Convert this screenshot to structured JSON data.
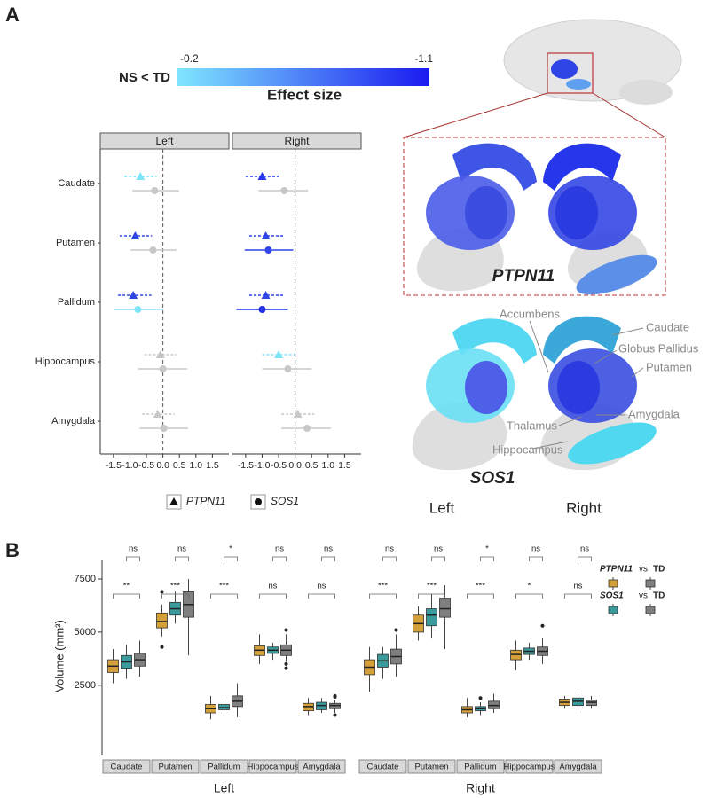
{
  "panel_labels": [
    "A",
    "B"
  ],
  "illustration": {
    "genes": [
      "PTPN11",
      "SOS1"
    ],
    "sides": [
      "Left",
      "Right"
    ],
    "structures": [
      "Accumbens",
      "Caudate",
      "Globus Pallidus",
      "Putamen",
      "Amygdala",
      "Thalamus",
      "Hippocampus"
    ]
  },
  "chart_data": [
    {
      "type": "forest",
      "facets": [
        "Left",
        "Right"
      ],
      "categories": [
        "Caudate",
        "Putamen",
        "Pallidum",
        "Hippocampus",
        "Amygdala"
      ],
      "xlim": [
        -1.9,
        2.0
      ],
      "xticks": [
        -1.5,
        {
          "value": -1,
          "label": "-1.0"
        },
        -0.5,
        {
          "value": 0,
          "label": "0.0"
        },
        0.5,
        {
          "value": 1,
          "label": "1.0"
        },
        1.5
      ],
      "colorbar": {
        "side_label": "NS < TD",
        "label": "Effect size",
        "lim": [
          -0.2,
          -1.1
        ],
        "colors": [
          "#7fe6ff",
          "#1a1aef"
        ]
      },
      "series": [
        {
          "name": "PTPN11",
          "marker": "triangle",
          "line_style": "dashed",
          "facets": [
            {
              "values": [
                -0.68,
                -0.84,
                -0.9,
                -0.08,
                -0.16
              ],
              "lower": [
                -1.17,
                -1.31,
                -1.36,
                -0.57,
                -0.63
              ],
              "upper": [
                -0.19,
                -0.33,
                -0.35,
                0.41,
                0.35
              ],
              "colors": [
                "#7fe3fa",
                "#2f45e6",
                "#2f45e6",
                "#c8c8c8",
                "#c8c8c8"
              ]
            },
            {
              "values": [
                -1.0,
                -0.89,
                -0.89,
                -0.5,
                0.08
              ],
              "lower": [
                -1.5,
                -1.39,
                -1.39,
                -1.0,
                -0.42
              ],
              "upper": [
                -0.5,
                -0.36,
                -0.36,
                0.0,
                0.58
              ],
              "colors": [
                "#2636ea",
                "#2f45e6",
                "#2f45e6",
                "#7fe3fa",
                "#c8c8c8"
              ]
            }
          ]
        },
        {
          "name": "SOS1",
          "marker": "circle",
          "line_style": "solid",
          "facets": [
            {
              "values": [
                -0.25,
                -0.3,
                -0.76,
                0.0,
                0.03
              ],
              "lower": [
                -0.93,
                -0.98,
                -1.5,
                -0.76,
                -0.71
              ],
              "upper": [
                0.49,
                0.41,
                0.0,
                0.74,
                0.76
              ],
              "colors": [
                "#c8c8c8",
                "#c8c8c8",
                "#7fe3fa",
                "#c8c8c8",
                "#c8c8c8"
              ]
            },
            {
              "values": [
                -0.33,
                -0.81,
                -1.0,
                -0.22,
                0.36
              ],
              "lower": [
                -1.11,
                -1.53,
                -1.78,
                -1.0,
                -0.42
              ],
              "upper": [
                0.39,
                -0.06,
                -0.22,
                0.5,
                1.08
              ],
              "colors": [
                "#c8c8c8",
                "#2f45e6",
                "#2230e8",
                "#c8c8c8",
                "#c8c8c8"
              ]
            }
          ]
        }
      ]
    },
    {
      "type": "boxplot",
      "ylabel": "Volume (mm³)",
      "ylim": [
        -800,
        9000
      ],
      "yticks": [
        2500,
        5000,
        7500
      ],
      "groups": [
        "Left",
        "Right"
      ],
      "categories": [
        "Caudate",
        "Putamen",
        "Pallidum",
        "Hippocampus",
        "Amygdala"
      ],
      "legend_connector": "vs",
      "series": [
        {
          "name": "PTPN11",
          "color": "#d4a03a",
          "groups": [
            [
              {
                "min": 2600,
                "q1": 3100,
                "median": 3400,
                "q3": 3700,
                "max": 4200,
                "outliers": []
              },
              {
                "min": 4800,
                "q1": 5200,
                "median": 5500,
                "q3": 5900,
                "max": 6300,
                "outliers": [
                  4300,
                  6900
                ]
              },
              {
                "min": 900,
                "q1": 1200,
                "median": 1400,
                "q3": 1600,
                "max": 2000,
                "outliers": []
              },
              {
                "min": 3500,
                "q1": 3900,
                "median": 4150,
                "q3": 4350,
                "max": 4900,
                "outliers": []
              },
              {
                "min": 1100,
                "q1": 1300,
                "median": 1500,
                "q3": 1650,
                "max": 1900,
                "outliers": []
              }
            ],
            [
              {
                "min": 2200,
                "q1": 3000,
                "median": 3350,
                "q3": 3700,
                "max": 4300,
                "outliers": []
              },
              {
                "min": 4600,
                "q1": 5000,
                "median": 5400,
                "q3": 5800,
                "max": 6200,
                "outliers": []
              },
              {
                "min": 1000,
                "q1": 1200,
                "median": 1350,
                "q3": 1500,
                "max": 1900,
                "outliers": []
              },
              {
                "min": 3200,
                "q1": 3700,
                "median": 3950,
                "q3": 4150,
                "max": 4600,
                "outliers": []
              },
              {
                "min": 1400,
                "q1": 1550,
                "median": 1700,
                "q3": 1850,
                "max": 2000,
                "outliers": []
              }
            ]
          ]
        },
        {
          "name": "SOS1",
          "color": "#3a9a9c",
          "groups": [
            [
              {
                "min": 2800,
                "q1": 3300,
                "median": 3600,
                "q3": 3900,
                "max": 4400,
                "outliers": []
              },
              {
                "min": 5400,
                "q1": 5800,
                "median": 6100,
                "q3": 6400,
                "max": 6900,
                "outliers": []
              },
              {
                "min": 1100,
                "q1": 1350,
                "median": 1450,
                "q3": 1600,
                "max": 1900,
                "outliers": []
              },
              {
                "min": 3700,
                "q1": 4000,
                "median": 4150,
                "q3": 4300,
                "max": 4500,
                "outliers": []
              },
              {
                "min": 1200,
                "q1": 1350,
                "median": 1550,
                "q3": 1700,
                "max": 1900,
                "outliers": []
              }
            ],
            [
              {
                "min": 2800,
                "q1": 3350,
                "median": 3650,
                "q3": 3950,
                "max": 4300,
                "outliers": []
              },
              {
                "min": 4700,
                "q1": 5300,
                "median": 5800,
                "q3": 6100,
                "max": 6800,
                "outliers": []
              },
              {
                "min": 1100,
                "q1": 1300,
                "median": 1400,
                "q3": 1500,
                "max": 1700,
                "outliers": [
                  1900
                ]
              },
              {
                "min": 3700,
                "q1": 3950,
                "median": 4100,
                "q3": 4250,
                "max": 4500,
                "outliers": []
              },
              {
                "min": 1300,
                "q1": 1550,
                "median": 1750,
                "q3": 1900,
                "max": 2200,
                "outliers": []
              }
            ]
          ]
        },
        {
          "name": "TD",
          "color": "#7f7f7f",
          "groups": [
            [
              {
                "min": 2900,
                "q1": 3400,
                "median": 3700,
                "q3": 4000,
                "max": 4600,
                "outliers": []
              },
              {
                "min": 3900,
                "q1": 5700,
                "median": 6300,
                "q3": 6900,
                "max": 7500,
                "outliers": []
              },
              {
                "min": 1000,
                "q1": 1500,
                "median": 1750,
                "q3": 2000,
                "max": 2600,
                "outliers": []
              },
              {
                "min": 3600,
                "q1": 3900,
                "median": 4150,
                "q3": 4400,
                "max": 4900,
                "outliers": [
                  3300,
                  3500,
                  5100
                ]
              },
              {
                "min": 1200,
                "q1": 1400,
                "median": 1550,
                "q3": 1650,
                "max": 1800,
                "outliers": [
                  1100,
                  1950,
                  2000
                ]
              }
            ],
            [
              {
                "min": 2900,
                "q1": 3500,
                "median": 3850,
                "q3": 4200,
                "max": 4900,
                "outliers": [
                  5100
                ]
              },
              {
                "min": 4200,
                "q1": 5700,
                "median": 6100,
                "q3": 6600,
                "max": 7200,
                "outliers": []
              },
              {
                "min": 1200,
                "q1": 1400,
                "median": 1550,
                "q3": 1750,
                "max": 2100,
                "outliers": []
              },
              {
                "min": 3500,
                "q1": 3900,
                "median": 4100,
                "q3": 4300,
                "max": 4700,
                "outliers": [
                  5300
                ]
              },
              {
                "min": 1400,
                "q1": 1550,
                "median": 1700,
                "q3": 1800,
                "max": 2000,
                "outliers": []
              }
            ]
          ]
        }
      ],
      "significance": {
        "upper": [
          [
            "ns",
            "ns",
            "*",
            "ns",
            "ns"
          ],
          [
            "ns",
            "ns",
            "*",
            "ns",
            "ns"
          ]
        ],
        "lower": [
          [
            "**",
            "***",
            "***",
            "ns",
            "ns"
          ],
          [
            "***",
            "***",
            "***",
            "*",
            "ns"
          ]
        ]
      }
    }
  ]
}
